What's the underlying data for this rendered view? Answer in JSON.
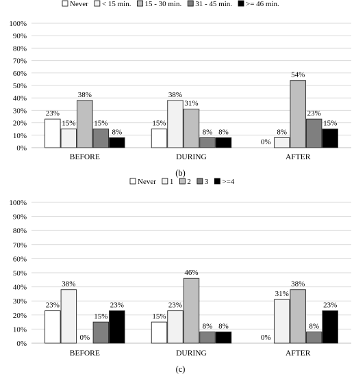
{
  "chart_data": [
    {
      "type": "bar",
      "caption": "(b)",
      "categories": [
        "BEFORE",
        "DURING",
        "AFTER"
      ],
      "series": [
        {
          "name": "Never",
          "values": [
            23,
            15,
            0
          ],
          "color": "#ffffff"
        },
        {
          "name": "< 15 min.",
          "values": [
            15,
            38,
            8
          ],
          "color": "#f2f2f2"
        },
        {
          "name": "15 - 30 min.",
          "values": [
            38,
            31,
            54
          ],
          "color": "#bfbfbf"
        },
        {
          "name": "31 - 45 min.",
          "values": [
            15,
            8,
            23
          ],
          "color": "#7f7f7f"
        },
        {
          "name": ">= 46 min.",
          "values": [
            8,
            8,
            15
          ],
          "color": "#000000"
        }
      ],
      "ylim": [
        0,
        100
      ],
      "yticks": [
        "0%",
        "10%",
        "20%",
        "30%",
        "40%",
        "50%",
        "60%",
        "70%",
        "80%",
        "90%",
        "100%"
      ],
      "value_suffix": "%",
      "legend_position": "top",
      "grid": true
    },
    {
      "type": "bar",
      "caption": "(c)",
      "categories": [
        "BEFORE",
        "DURING",
        "AFTER"
      ],
      "series": [
        {
          "name": "Never",
          "values": [
            23,
            15,
            0
          ],
          "color": "#ffffff"
        },
        {
          "name": "1",
          "values": [
            38,
            23,
            31
          ],
          "color": "#f2f2f2"
        },
        {
          "name": "2",
          "values": [
            0,
            46,
            38
          ],
          "color": "#bfbfbf"
        },
        {
          "name": "3",
          "values": [
            15,
            8,
            8
          ],
          "color": "#7f7f7f"
        },
        {
          "name": ">=4",
          "values": [
            23,
            8,
            23
          ],
          "color": "#000000"
        }
      ],
      "ylim": [
        0,
        100
      ],
      "yticks": [
        "0%",
        "10%",
        "20%",
        "30%",
        "40%",
        "50%",
        "60%",
        "70%",
        "80%",
        "90%",
        "100%"
      ],
      "value_suffix": "%",
      "legend_position": "top",
      "grid": true
    }
  ]
}
